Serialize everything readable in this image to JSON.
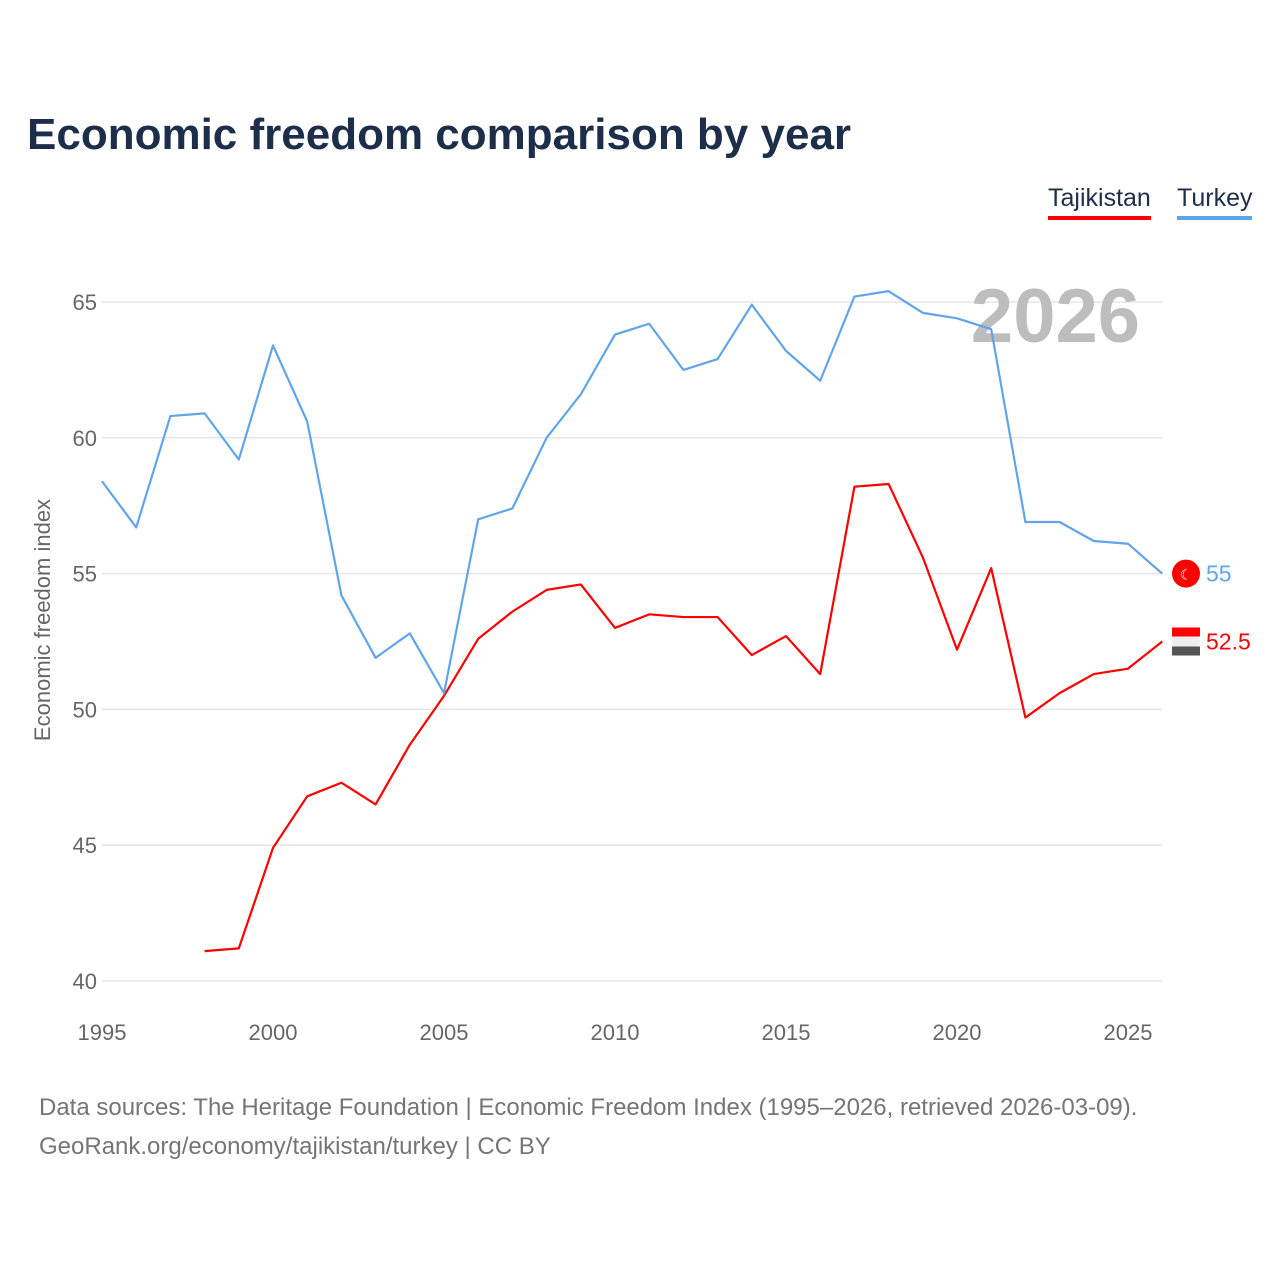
{
  "chart_data": {
    "type": "line",
    "title": "Economic freedom comparison by year",
    "xlabel": "",
    "ylabel": "Economic freedom index",
    "xlim": [
      1995,
      2026
    ],
    "ylim": [
      40,
      66
    ],
    "x_ticks": [
      "1995",
      "2000",
      "2005",
      "2010",
      "2015",
      "2020",
      "2025"
    ],
    "y_ticks": [
      "40",
      "45",
      "50",
      "55",
      "60",
      "65"
    ],
    "grid": true,
    "legend_position": "top-right",
    "year_label": "2026",
    "series": [
      {
        "name": "Tajikistan",
        "color": "#ff0000",
        "end_label": "52.5",
        "x": [
          1998,
          1999,
          2000,
          2001,
          2002,
          2003,
          2004,
          2005,
          2006,
          2007,
          2008,
          2009,
          2010,
          2011,
          2012,
          2013,
          2014,
          2015,
          2016,
          2017,
          2018,
          2019,
          2020,
          2021,
          2022,
          2023,
          2024,
          2025,
          2026
        ],
        "values": [
          41.1,
          41.2,
          44.9,
          46.8,
          47.3,
          46.5,
          48.7,
          50.5,
          52.6,
          53.6,
          54.4,
          54.6,
          53.0,
          53.5,
          53.4,
          53.4,
          52.0,
          52.7,
          51.3,
          58.2,
          58.3,
          55.6,
          52.2,
          55.2,
          49.7,
          50.6,
          51.3,
          51.5,
          52.5
        ]
      },
      {
        "name": "Turkey",
        "color": "#60a5ea",
        "end_label": "55",
        "x": [
          1995,
          1996,
          1997,
          1998,
          1999,
          2000,
          2001,
          2002,
          2003,
          2004,
          2005,
          2006,
          2007,
          2008,
          2009,
          2010,
          2011,
          2012,
          2013,
          2014,
          2015,
          2016,
          2017,
          2018,
          2019,
          2020,
          2021,
          2022,
          2023,
          2024,
          2025,
          2026
        ],
        "values": [
          58.4,
          56.7,
          60.8,
          60.9,
          59.2,
          63.4,
          60.6,
          54.2,
          51.9,
          52.8,
          50.6,
          57.0,
          57.4,
          60.0,
          61.6,
          63.8,
          64.2,
          62.5,
          62.9,
          64.9,
          63.2,
          62.1,
          65.2,
          65.4,
          64.6,
          64.4,
          64.0,
          56.9,
          56.9,
          56.2,
          56.1,
          55.0
        ]
      }
    ]
  },
  "footer": {
    "line1": "Data sources: The Heritage Foundation | Economic Freedom Index (1995–2026, retrieved 2026-03-09).",
    "line2": "GeoRank.org/economy/tajikistan/turkey | CC BY"
  }
}
